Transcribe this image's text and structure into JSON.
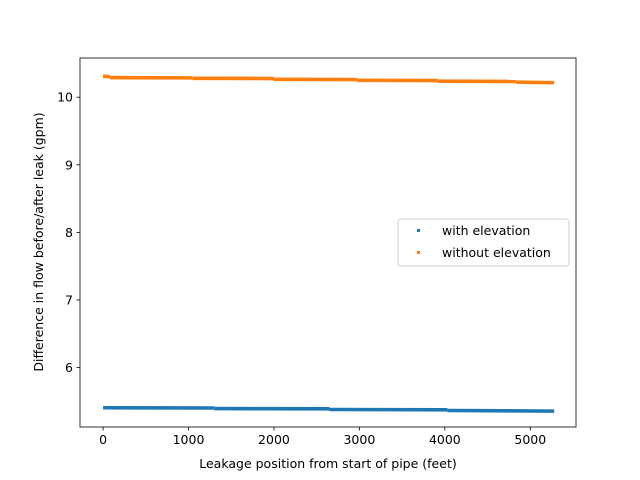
{
  "chart_data": {
    "type": "scatter",
    "title": "",
    "xlabel": "Leakage position from start of pipe (feet)",
    "ylabel": "Difference in flow before/after leak (gpm)",
    "xlim": [
      -270,
      5535
    ],
    "ylim": [
      5.12,
      10.58
    ],
    "xticks": [
      0,
      1000,
      2000,
      3000,
      4000,
      5000
    ],
    "yticks": [
      6,
      7,
      8,
      9,
      10
    ],
    "grid": false,
    "legend_position": "center-right",
    "series": [
      {
        "name": "with elevation",
        "color": "#1f77b4",
        "x_range": [
          0,
          5280
        ],
        "step_x": [
          0,
          1300,
          2650,
          4030
        ],
        "step_y": [
          5.405,
          5.393,
          5.379,
          5.364
        ],
        "end_y": 5.355
      },
      {
        "name": "without elevation",
        "color": "#ff7f0e",
        "x_range": [
          0,
          5280
        ],
        "step_x": [
          0,
          80,
          1050,
          2000,
          2970,
          3920,
          4830
        ],
        "step_y": [
          10.31,
          10.29,
          10.28,
          10.265,
          10.25,
          10.237,
          10.223
        ],
        "end_y": 10.215
      }
    ]
  }
}
